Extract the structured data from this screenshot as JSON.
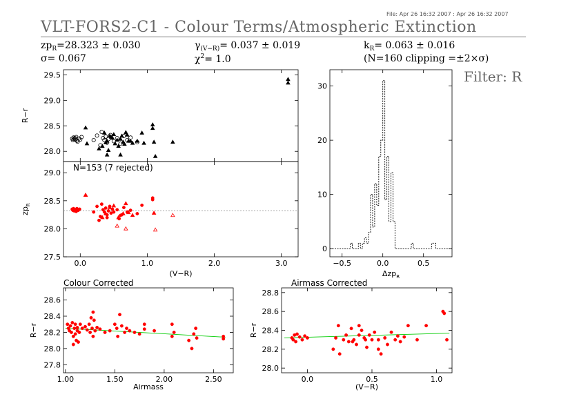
{
  "header": {
    "file_stamp": "File: Apr 26 16:32 2007 : Apr 26 16:32 2007",
    "title": "VLT-FORS2-C1 - Colour Terms/Atmospheric Extinction",
    "zp_symbol": "zp",
    "zp_sub": "R",
    "zp_value": "=28.323 ± 0.030",
    "sigma_text": "σ= 0.067",
    "gamma_symbol": "γ",
    "gamma_sub": "(V−R)",
    "gamma_value": "= 0.037 ± 0.019",
    "chi_symbol": "χ",
    "chi_sup": "2",
    "chi_value": "= 1.0",
    "k_symbol": "k",
    "k_sub": "R",
    "k_value": "= 0.063 ± 0.016",
    "clipping_text": "(N=160 clipping =±2×σ)",
    "filter_label": "Filter: R"
  },
  "colors": {
    "black": "#000000",
    "red": "#ff0000",
    "green": "#00cc00",
    "grey": "#999999"
  },
  "chart_data": [
    {
      "type": "scatter",
      "panel": "colour-term-raw",
      "xlabel": "",
      "ylabel": "R−r",
      "xlim": [
        -0.25,
        3.25
      ],
      "ylim": [
        27.8,
        29.6
      ],
      "yticks": [
        28.0,
        28.5,
        29.0,
        29.5
      ],
      "xticks": [
        0.0,
        1.0,
        2.0,
        3.0
      ],
      "color": "black",
      "series": [
        {
          "marker": "circle",
          "points": [
            [
              -0.12,
              28.25
            ],
            [
              -0.11,
              28.22
            ],
            [
              -0.1,
              28.27
            ],
            [
              -0.09,
              28.24
            ],
            [
              -0.08,
              28.26
            ],
            [
              -0.07,
              28.23
            ],
            [
              -0.06,
              28.28
            ],
            [
              -0.05,
              28.21
            ],
            [
              -0.04,
              28.19
            ],
            [
              -0.02,
              28.25
            ],
            [
              0.0,
              28.23
            ],
            [
              0.02,
              28.28
            ],
            [
              0.2,
              28.22
            ],
            [
              0.25,
              28.31
            ],
            [
              0.3,
              28.12
            ],
            [
              0.32,
              28.38
            ],
            [
              0.34,
              28.26
            ],
            [
              0.36,
              28.22
            ],
            [
              0.38,
              28.29
            ],
            [
              0.4,
              28.17
            ],
            [
              0.42,
              28.24
            ],
            [
              0.45,
              28.32
            ],
            [
              0.5,
              28.2
            ],
            [
              0.55,
              28.26
            ],
            [
              0.6,
              28.15
            ],
            [
              0.65,
              28.3
            ],
            [
              0.7,
              28.22
            ],
            [
              0.75,
              28.27
            ],
            [
              0.85,
              28.18
            ]
          ]
        },
        {
          "marker": "triangle",
          "points": [
            [
              0.08,
              28.46
            ],
            [
              0.1,
              28.15
            ],
            [
              0.28,
              28.05
            ],
            [
              0.33,
              28.1
            ],
            [
              0.36,
              28.36
            ],
            [
              0.38,
              28.17
            ],
            [
              0.4,
              28.2
            ],
            [
              0.42,
              28.02
            ],
            [
              0.44,
              28.3
            ],
            [
              0.46,
              28.28
            ],
            [
              0.48,
              28.26
            ],
            [
              0.5,
              28.33
            ],
            [
              0.52,
              28.15
            ],
            [
              0.55,
              28.22
            ],
            [
              0.57,
              28.1
            ],
            [
              0.6,
              28.24
            ],
            [
              0.62,
              28.3
            ],
            [
              0.64,
              28.18
            ],
            [
              0.66,
              28.14
            ],
            [
              0.68,
              28.37
            ],
            [
              0.7,
              28.32
            ],
            [
              0.72,
              28.2
            ],
            [
              0.75,
              28.2
            ],
            [
              0.78,
              28.16
            ],
            [
              0.85,
              28.2
            ],
            [
              0.92,
              28.36
            ],
            [
              0.95,
              28.16
            ],
            [
              1.08,
              28.52
            ],
            [
              1.08,
              28.45
            ],
            [
              1.1,
              28.18
            ],
            [
              1.12,
              27.9
            ],
            [
              1.38,
              28.18
            ],
            [
              3.1,
              29.41
            ],
            [
              3.1,
              29.34
            ],
            [
              0.4,
              27.93
            ],
            [
              0.6,
              27.93
            ]
          ]
        }
      ]
    },
    {
      "type": "scatter",
      "panel": "zeropoint",
      "annotation": "N=153 (7 rejected)",
      "xlabel": "(V−R)",
      "ylabel": "zp",
      "ylabel_sub": "R",
      "xlim": [
        -0.25,
        3.25
      ],
      "ylim": [
        27.5,
        29.2
      ],
      "yticks": [
        27.5,
        28.0,
        28.5,
        29.0
      ],
      "xticks": [
        0.0,
        1.0,
        2.0,
        3.0
      ],
      "xtick_labels": [
        "0.0",
        "1.0",
        "2.0",
        "3.0"
      ],
      "reference_line": 28.323,
      "color": "red",
      "series": [
        {
          "marker": "dot",
          "points": [
            [
              -0.12,
              28.35
            ],
            [
              -0.11,
              28.33
            ],
            [
              -0.1,
              28.36
            ],
            [
              -0.09,
              28.32
            ],
            [
              -0.08,
              28.34
            ],
            [
              -0.06,
              28.31
            ],
            [
              -0.05,
              28.36
            ],
            [
              -0.03,
              28.33
            ],
            [
              -0.01,
              28.35
            ],
            [
              0.2,
              28.3
            ],
            [
              0.25,
              28.4
            ],
            [
              0.3,
              28.22
            ],
            [
              0.32,
              28.44
            ],
            [
              0.34,
              28.34
            ],
            [
              0.36,
              28.3
            ],
            [
              0.38,
              28.37
            ],
            [
              0.4,
              28.25
            ],
            [
              0.42,
              28.32
            ],
            [
              0.44,
              28.4
            ],
            [
              0.46,
              28.28
            ],
            [
              0.48,
              28.35
            ],
            [
              0.5,
              28.3
            ],
            [
              0.55,
              28.34
            ],
            [
              0.6,
              28.24
            ],
            [
              0.65,
              28.38
            ],
            [
              0.7,
              28.3
            ],
            [
              0.75,
              28.33
            ],
            [
              0.85,
              28.27
            ],
            [
              0.92,
              28.42
            ],
            [
              1.08,
              28.55
            ],
            [
              1.08,
              28.52
            ],
            [
              0.28,
              28.15
            ],
            [
              0.4,
              28.2
            ],
            [
              0.58,
              28.18
            ],
            [
              0.62,
              28.25
            ]
          ]
        },
        {
          "marker": "triangle",
          "points": [
            [
              0.08,
              28.6
            ],
            [
              0.33,
              28.2
            ],
            [
              0.38,
              28.27
            ],
            [
              0.44,
              28.38
            ],
            [
              0.5,
              28.41
            ],
            [
              0.57,
              28.2
            ],
            [
              0.64,
              28.27
            ],
            [
              0.68,
              28.45
            ],
            [
              0.72,
              28.29
            ],
            [
              0.78,
              28.24
            ],
            [
              1.1,
              28.28
            ]
          ]
        },
        {
          "marker": "triangle-open",
          "points": [
            [
              0.08,
              28.6
            ],
            [
              0.55,
              28.05
            ],
            [
              0.68,
              28.0
            ],
            [
              1.12,
              27.98
            ],
            [
              1.38,
              28.24
            ]
          ]
        }
      ]
    },
    {
      "type": "bar",
      "panel": "histogram",
      "xlabel": "Δzp",
      "xlabel_sub": "R",
      "xlim": [
        -0.65,
        0.85
      ],
      "ylim": [
        -1.5,
        33
      ],
      "xticks": [
        -0.5,
        0.0,
        0.5
      ],
      "xtick_labels": [
        "−0.5",
        "0.0",
        "0.5"
      ],
      "yticks": [
        0,
        10,
        20,
        30
      ],
      "bin_width": 0.025,
      "bins": [
        [
          -0.4,
          1
        ],
        [
          -0.375,
          0
        ],
        [
          -0.35,
          0
        ],
        [
          -0.325,
          0
        ],
        [
          -0.3,
          1
        ],
        [
          -0.275,
          0
        ],
        [
          -0.25,
          1
        ],
        [
          -0.225,
          2
        ],
        [
          -0.2,
          1
        ],
        [
          -0.175,
          3
        ],
        [
          -0.15,
          10
        ],
        [
          -0.125,
          4
        ],
        [
          -0.1,
          12
        ],
        [
          -0.075,
          8
        ],
        [
          -0.05,
          17
        ],
        [
          -0.025,
          20
        ],
        [
          0.0,
          31
        ],
        [
          0.025,
          9
        ],
        [
          0.05,
          17
        ],
        [
          0.075,
          5
        ],
        [
          0.1,
          14
        ],
        [
          0.125,
          5
        ],
        [
          0.35,
          1
        ],
        [
          0.6,
          1
        ],
        [
          0.625,
          1
        ]
      ]
    },
    {
      "type": "scatter",
      "panel": "colour-corrected",
      "title": "Colour Corrected",
      "xlabel": "Airmass",
      "ylabel": "R−r",
      "xlim": [
        0.98,
        2.7
      ],
      "ylim": [
        27.7,
        28.75
      ],
      "yticks": [
        27.8,
        28.0,
        28.2,
        28.4,
        28.6
      ],
      "xticks": [
        1.0,
        1.5,
        2.0,
        2.5
      ],
      "xtick_labels": [
        "1.00",
        "1.50",
        "2.00",
        "2.50"
      ],
      "color": "red",
      "fit_line": [
        [
          1.0,
          28.25
        ],
        [
          2.62,
          28.14
        ]
      ],
      "points": [
        [
          1.02,
          28.3
        ],
        [
          1.03,
          28.25
        ],
        [
          1.04,
          28.22
        ],
        [
          1.05,
          28.28
        ],
        [
          1.06,
          28.2
        ],
        [
          1.07,
          28.32
        ],
        [
          1.08,
          28.15
        ],
        [
          1.08,
          28.05
        ],
        [
          1.09,
          28.25
        ],
        [
          1.1,
          28.18
        ],
        [
          1.1,
          28.3
        ],
        [
          1.11,
          28.1
        ],
        [
          1.12,
          28.22
        ],
        [
          1.12,
          28.26
        ],
        [
          1.13,
          28.08
        ],
        [
          1.14,
          28.2
        ],
        [
          1.15,
          28.3
        ],
        [
          1.17,
          28.25
        ],
        [
          1.2,
          28.27
        ],
        [
          1.22,
          28.23
        ],
        [
          1.24,
          28.3
        ],
        [
          1.25,
          28.2
        ],
        [
          1.26,
          28.38
        ],
        [
          1.27,
          28.25
        ],
        [
          1.28,
          28.45
        ],
        [
          1.28,
          28.15
        ],
        [
          1.29,
          28.35
        ],
        [
          1.3,
          28.22
        ],
        [
          1.32,
          28.26
        ],
        [
          1.35,
          28.24
        ],
        [
          1.4,
          28.2
        ],
        [
          1.45,
          28.22
        ],
        [
          1.5,
          28.3
        ],
        [
          1.52,
          28.25
        ],
        [
          1.53,
          28.15
        ],
        [
          1.55,
          28.42
        ],
        [
          1.57,
          28.28
        ],
        [
          1.6,
          28.2
        ],
        [
          1.62,
          28.25
        ],
        [
          1.65,
          28.22
        ],
        [
          1.7,
          28.2
        ],
        [
          1.75,
          28.18
        ],
        [
          1.8,
          28.3
        ],
        [
          1.8,
          28.24
        ],
        [
          1.9,
          28.22
        ],
        [
          2.08,
          28.3
        ],
        [
          2.08,
          28.15
        ],
        [
          2.1,
          28.2
        ],
        [
          2.25,
          28.1
        ],
        [
          2.28,
          28.0
        ],
        [
          2.3,
          28.18
        ],
        [
          2.32,
          28.25
        ],
        [
          2.33,
          28.13
        ],
        [
          2.6,
          28.15
        ],
        [
          2.6,
          28.12
        ]
      ]
    },
    {
      "type": "scatter",
      "panel": "airmass-corrected",
      "title": "Airmass Corrected",
      "xlabel": "(V−R)",
      "ylabel": "R−r",
      "xlim": [
        -0.2,
        1.12
      ],
      "ylim": [
        27.95,
        28.85
      ],
      "yticks": [
        28.0,
        28.2,
        28.4,
        28.6,
        28.8
      ],
      "xticks": [
        0.0,
        0.5,
        1.0
      ],
      "xtick_labels": [
        "0.0",
        "0.5",
        "1.0"
      ],
      "color": "red",
      "fit_line": [
        [
          -0.18,
          28.32
        ],
        [
          1.1,
          28.37
        ]
      ],
      "points": [
        [
          -0.12,
          28.32
        ],
        [
          -0.11,
          28.3
        ],
        [
          -0.1,
          28.35
        ],
        [
          -0.09,
          28.28
        ],
        [
          -0.08,
          28.36
        ],
        [
          -0.06,
          28.33
        ],
        [
          -0.04,
          28.3
        ],
        [
          -0.02,
          28.34
        ],
        [
          0.0,
          28.32
        ],
        [
          0.2,
          28.2
        ],
        [
          0.22,
          28.32
        ],
        [
          0.24,
          28.45
        ],
        [
          0.25,
          28.15
        ],
        [
          0.28,
          28.3
        ],
        [
          0.3,
          28.35
        ],
        [
          0.32,
          28.28
        ],
        [
          0.34,
          28.42
        ],
        [
          0.36,
          28.3
        ],
        [
          0.38,
          28.25
        ],
        [
          0.4,
          28.35
        ],
        [
          0.42,
          28.4
        ],
        [
          0.44,
          28.32
        ],
        [
          0.45,
          28.3
        ],
        [
          0.46,
          28.22
        ],
        [
          0.48,
          28.35
        ],
        [
          0.5,
          28.3
        ],
        [
          0.52,
          28.38
        ],
        [
          0.55,
          28.3
        ],
        [
          0.55,
          28.2
        ],
        [
          0.57,
          28.15
        ],
        [
          0.6,
          28.32
        ],
        [
          0.62,
          28.25
        ],
        [
          0.65,
          28.38
        ],
        [
          0.68,
          28.3
        ],
        [
          0.7,
          28.34
        ],
        [
          0.72,
          28.28
        ],
        [
          0.75,
          28.33
        ],
        [
          0.78,
          28.45
        ],
        [
          0.85,
          28.3
        ],
        [
          0.92,
          28.45
        ],
        [
          1.05,
          28.6
        ],
        [
          1.06,
          28.58
        ],
        [
          1.08,
          28.3
        ],
        [
          0.4,
          28.45
        ],
        [
          0.35,
          28.28
        ]
      ]
    }
  ]
}
